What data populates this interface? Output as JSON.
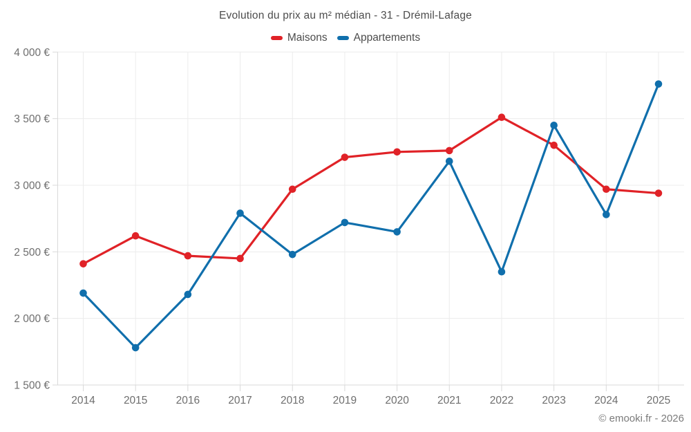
{
  "chart": {
    "title": "Evolution du prix au m² médian - 31 - Drémil-Lafage",
    "attribution": "© emooki.fr - 2026"
  },
  "chart_data": {
    "type": "line",
    "categories": [
      "2014",
      "2015",
      "2016",
      "2017",
      "2018",
      "2019",
      "2020",
      "2021",
      "2022",
      "2023",
      "2024",
      "2025"
    ],
    "series": [
      {
        "name": "Maisons",
        "color": "#e02227",
        "values": [
          2410,
          2620,
          2470,
          2450,
          2970,
          3210,
          3250,
          3260,
          3510,
          3300,
          2970,
          2940
        ]
      },
      {
        "name": "Appartements",
        "color": "#106fac",
        "values": [
          2190,
          1780,
          2180,
          2790,
          2480,
          2720,
          2650,
          3180,
          2350,
          3450,
          2780,
          3760
        ]
      }
    ],
    "title": "Evolution du prix au m² médian - 31 - Drémil-Lafage",
    "xlabel": "",
    "ylabel": "",
    "ylim": [
      1500,
      4000
    ],
    "y_ticks": [
      {
        "value": 1500,
        "label": "1 500 €"
      },
      {
        "value": 2000,
        "label": "2 000 €"
      },
      {
        "value": 2500,
        "label": "2 500 €"
      },
      {
        "value": 3000,
        "label": "3 000 €"
      },
      {
        "value": 3500,
        "label": "3 500 €"
      },
      {
        "value": 4000,
        "label": "4 000 €"
      }
    ],
    "grid": true,
    "legend_position": "top"
  },
  "colors": {
    "grid_line": "#ececec",
    "axis_line": "#d9d9d9",
    "tick_text": "#6e6e6e",
    "title_text": "#4c4c4c",
    "attribution_text": "#7b7b7b"
  }
}
